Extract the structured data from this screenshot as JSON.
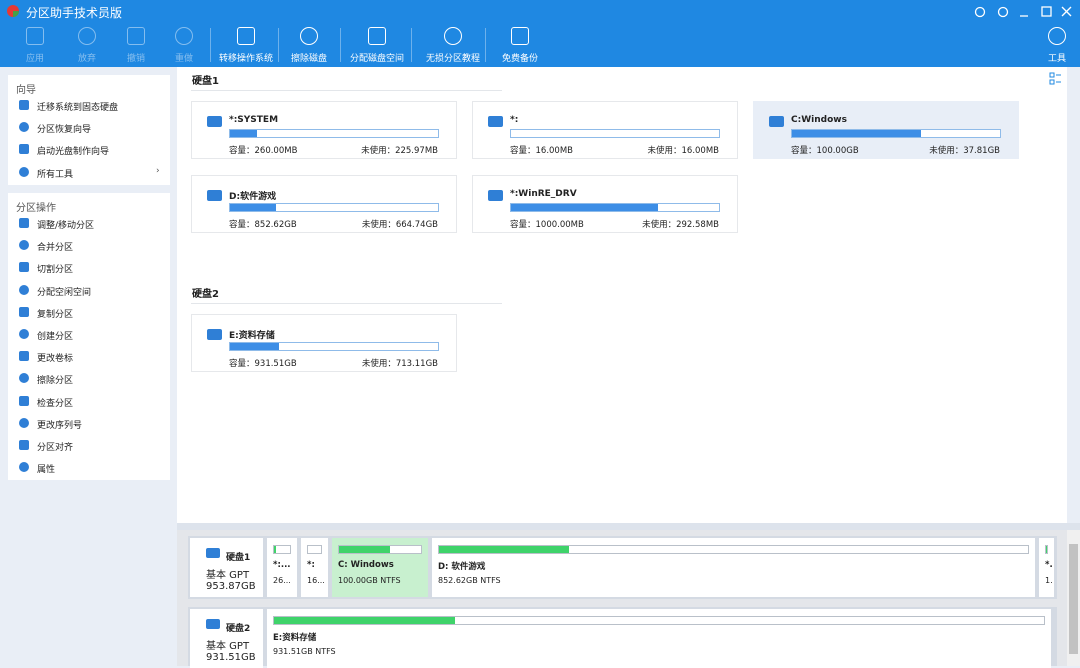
{
  "window": {
    "title": "分区助手技术员版",
    "toolbar": [
      "应用",
      "放弃",
      "撤销",
      "重做",
      "转移操作系统",
      "擦除磁盘",
      "分配磁盘空间",
      "无损分区教程",
      "免费备份",
      "工具"
    ]
  },
  "sidebar": {
    "sections": [
      {
        "title": "向导",
        "items": [
          "迁移系统到固态硬盘",
          "分区恢复向导",
          "启动光盘制作向导",
          "所有工具"
        ]
      },
      {
        "title": "分区操作",
        "items": [
          "调整/移动分区",
          "合并分区",
          "切割分区",
          "分配空闲空间",
          "复制分区",
          "创建分区",
          "更改卷标",
          "擦除分区",
          "检查分区",
          "更改序列号",
          "分区对齐",
          "属性"
        ]
      }
    ]
  },
  "disks": [
    {
      "name": "硬盘1",
      "type": "基本 GPT",
      "size": "953.87GB",
      "partitions": [
        {
          "name": "*:SYSTEM",
          "capacity": "容量：260.00MB",
          "free": "未使用：225.97MB",
          "short_name": "*:...",
          "short_info": "26..."
        },
        {
          "name": "*:",
          "capacity": "容量：16.00MB",
          "free": "未使用：16.00MB",
          "short_name": "*:",
          "short_info": "16..."
        },
        {
          "name": "C:Windows",
          "capacity": "容量：100.00GB",
          "free": "未使用：37.81GB",
          "short_name": "C: Windows",
          "short_info": "100.00GB NTFS",
          "selected": true
        },
        {
          "name": "D:软件游戏",
          "capacity": "容量：852.62GB",
          "free": "未使用：664.74GB",
          "short_name": "D: 软件游戏",
          "short_info": "852.62GB NTFS"
        },
        {
          "name": "*:WinRE_DRV",
          "capacity": "容量：1000.00MB",
          "free": "未使用：292.58MB",
          "short_name": "*.",
          "short_info": "1."
        }
      ]
    },
    {
      "name": "硬盘2",
      "type": "基本 GPT",
      "size": "931.51GB",
      "partitions": [
        {
          "name": "E:资料存储",
          "capacity": "容量：931.51GB",
          "free": "未使用：713.11GB",
          "short_name": "E:资料存储",
          "short_info": "931.51GB NTFS"
        }
      ]
    }
  ]
}
